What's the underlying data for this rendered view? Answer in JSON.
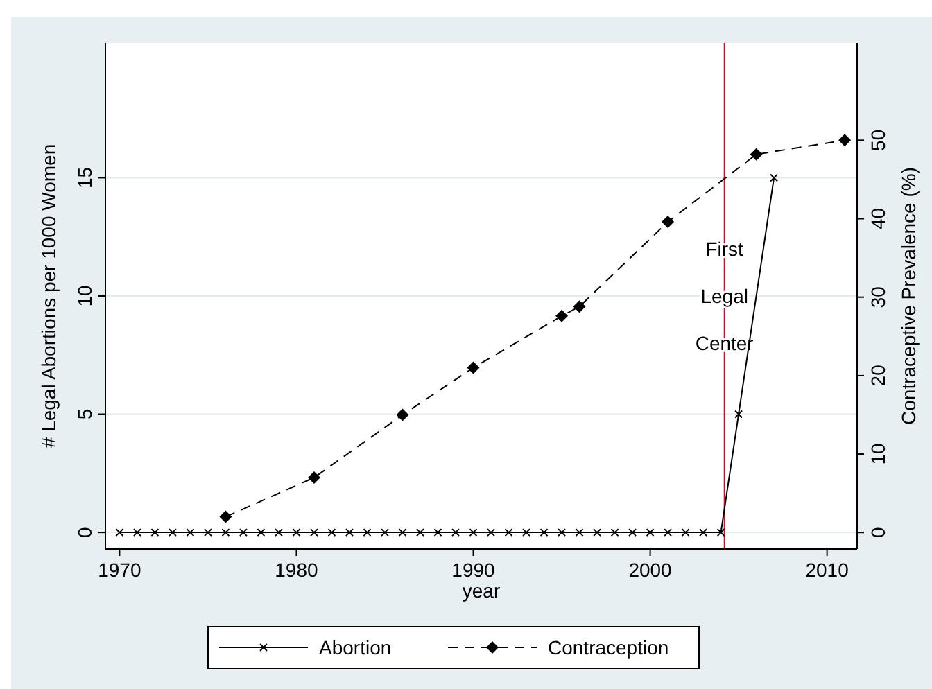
{
  "chart_data": {
    "type": "line",
    "xlabel": "year",
    "ylabel": "# Legal Abortions per 1000 Women",
    "y2label": "Contraceptive Prevalence (%)",
    "xlim": [
      1969.2,
      2011.7
    ],
    "xticks": [
      1970,
      1980,
      1990,
      2000,
      2010
    ],
    "ylim": [
      -0.7,
      20.7
    ],
    "yticks": [
      0,
      5,
      10,
      15
    ],
    "y2lim": [
      -2.1,
      62.4
    ],
    "y2ticks": [
      0,
      10,
      20,
      30,
      40,
      50
    ],
    "grid": "y",
    "legend": "bottom",
    "series": [
      {
        "name": "Abortion",
        "color": "#000000",
        "marker": "cross",
        "line_style": "solid",
        "x": [
          1970,
          1971,
          1972,
          1973,
          1974,
          1975,
          1976,
          1977,
          1978,
          1979,
          1980,
          1981,
          1982,
          1983,
          1984,
          1985,
          1986,
          1987,
          1988,
          1989,
          1990,
          1991,
          1992,
          1993,
          1994,
          1995,
          1996,
          1997,
          1998,
          1999,
          2000,
          2001,
          2002,
          2003,
          2004,
          2005,
          2007
        ],
        "values": [
          0,
          0,
          0,
          0,
          0,
          0,
          0,
          0,
          0,
          0,
          0,
          0,
          0,
          0,
          0,
          0,
          0,
          0,
          0,
          0,
          0,
          0,
          0,
          0,
          0,
          0,
          0,
          0,
          0,
          0,
          0,
          0,
          0,
          0,
          0,
          5,
          15
        ]
      },
      {
        "name": "Contraception",
        "color": "#000000",
        "marker": "diamond",
        "line_style": "dashed",
        "axis": "y2",
        "x": [
          1976,
          1981,
          1986,
          1990,
          1995,
          1996,
          2001,
          2006,
          2011
        ],
        "values": [
          2,
          7,
          15,
          21,
          27.6,
          28.8,
          39.6,
          48.2,
          50
        ]
      }
    ],
    "ref_lines": [
      {
        "axis": "x",
        "value": 2004.2,
        "label": "First Legal Center",
        "color": "#c8102e"
      }
    ]
  }
}
